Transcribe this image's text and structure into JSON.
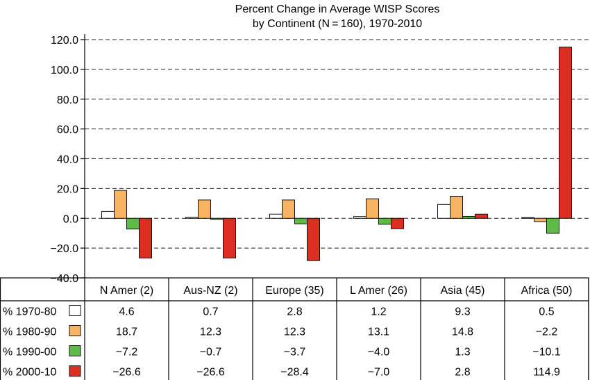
{
  "chart_data": {
    "type": "bar",
    "title_lines": [
      "Percent Change in Average WISP Scores",
      "by Continent (N = 160), 1970-2010"
    ],
    "xlabel": "",
    "ylabel": "",
    "ylim": [
      -40,
      120
    ],
    "yticks": [
      -40,
      -20,
      0,
      20,
      40,
      60,
      80,
      100,
      120
    ],
    "ytick_labels": [
      "−40.0",
      "−20.0",
      "0.0",
      "20.0",
      "40.0",
      "60.0",
      "80.0",
      "100.0",
      "120.0"
    ],
    "grid": "dashed horizontal",
    "categories": [
      "N Amer (2)",
      "Aus-NZ (2)",
      "Europe (35)",
      "L Amer (26)",
      "Asia (45)",
      "Africa (50)"
    ],
    "series": [
      {
        "name": "% 1970-80",
        "color": "#ffffff",
        "values": [
          4.6,
          0.7,
          2.8,
          1.2,
          9.3,
          0.5
        ],
        "labels": [
          "4.6",
          "0.7",
          "2.8",
          "1.2",
          "9.3",
          "0.5"
        ]
      },
      {
        "name": "% 1980-90",
        "color": "#f7b564",
        "values": [
          18.7,
          12.3,
          12.3,
          13.1,
          14.8,
          -2.2
        ],
        "labels": [
          "18.7",
          "12.3",
          "12.3",
          "13.1",
          "14.8",
          "−2.2"
        ]
      },
      {
        "name": "% 1990-00",
        "color": "#5dbb46",
        "values": [
          -7.2,
          -0.7,
          -3.7,
          -4.0,
          1.3,
          -10.1
        ],
        "labels": [
          "−7.2",
          "−0.7",
          "−3.7",
          "−4.0",
          "1.3",
          "−10.1"
        ]
      },
      {
        "name": "% 2000-10",
        "color": "#dc2f22",
        "values": [
          -26.6,
          -26.6,
          -28.4,
          -7.0,
          2.8,
          114.9
        ],
        "labels": [
          "−26.6",
          "−26.6",
          "−28.4",
          "−7.0",
          "2.8",
          "114.9"
        ]
      }
    ]
  }
}
